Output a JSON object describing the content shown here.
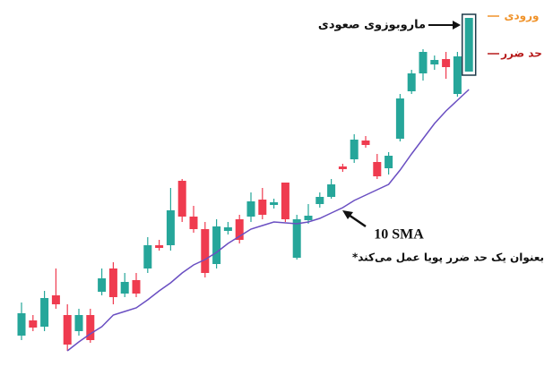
{
  "chart_data": {
    "type": "candlestick",
    "open": [
      25,
      42,
      35,
      70,
      48,
      30,
      48,
      74,
      100,
      72,
      87,
      100,
      126,
      126,
      198,
      158,
      144,
      105,
      142,
      155,
      158,
      177,
      171,
      196,
      112,
      154,
      172,
      180,
      214,
      222,
      243,
      219,
      212,
      245,
      298,
      318,
      328,
      334,
      295,
      320
    ],
    "high": [
      62,
      48,
      75,
      100,
      60,
      55,
      55,
      100,
      107,
      95,
      95,
      135,
      132,
      190,
      200,
      170,
      152,
      155,
      152,
      160,
      185,
      190,
      178,
      196,
      160,
      172,
      185,
      200,
      217,
      250,
      248,
      228,
      230,
      295,
      322,
      345,
      338,
      342,
      342,
      380
    ],
    "low": [
      20,
      30,
      30,
      55,
      8,
      25,
      17,
      70,
      60,
      68,
      68,
      95,
      120,
      120,
      152,
      140,
      90,
      100,
      138,
      128,
      152,
      155,
      167,
      152,
      110,
      150,
      168,
      178,
      208,
      218,
      235,
      200,
      205,
      242,
      295,
      310,
      322,
      312,
      292,
      320
    ],
    "close": [
      50,
      34,
      67,
      60,
      15,
      48,
      20,
      89,
      68,
      85,
      72,
      126,
      123,
      165,
      158,
      144,
      95,
      147,
      146,
      132,
      175,
      160,
      174,
      155,
      155,
      159,
      180,
      194,
      211,
      244,
      238,
      203,
      226,
      290,
      318,
      342,
      333,
      325,
      337,
      380
    ],
    "up_color": "#26a69a",
    "down_color": "#ef3b4f",
    "sma": {
      "name": "10 SMA",
      "color": "#6a4fc2",
      "values": [
        null,
        null,
        null,
        null,
        8,
        18,
        27,
        35,
        48,
        52,
        56,
        65,
        75,
        84,
        95,
        104,
        110,
        118,
        128,
        136,
        144,
        148,
        152,
        151,
        150,
        152,
        156,
        162,
        168,
        176,
        182,
        188,
        194,
        210,
        228,
        245,
        262,
        276,
        288,
        300
      ]
    },
    "ylim": [
      0,
      400
    ],
    "highlight_label": "ماروبوزوی صعودی",
    "note": "*بعنوان یک حد ضرر پویا عمل می‌کند",
    "entry": {
      "label": "ورودی",
      "value": 382,
      "color": "#f0932b"
    },
    "stop_loss": {
      "label": "حد ضرر",
      "value": 340,
      "color": "#b71c1c"
    }
  }
}
